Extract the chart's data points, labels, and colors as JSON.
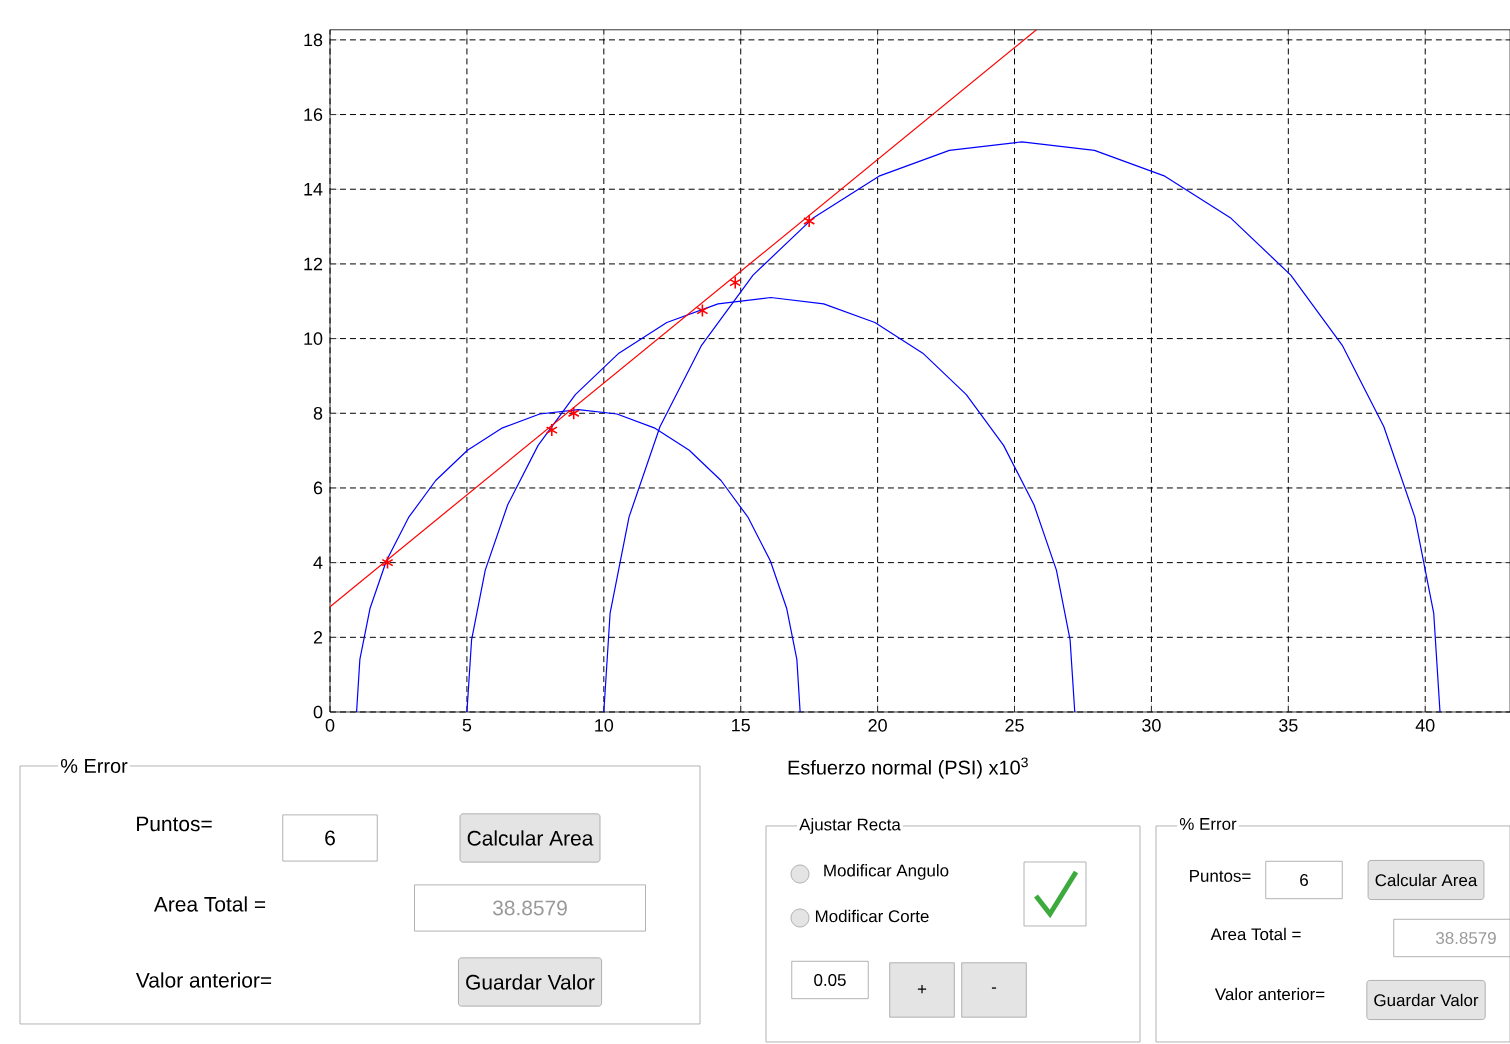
{
  "chart_data": {
    "type": "line",
    "xlabel": "Esfuerzo normal (PSI) x10$^{3}$",
    "xlim": [
      0,
      43.1
    ],
    "ylim": [
      0,
      18.27
    ],
    "xticks": [
      0,
      5,
      10,
      15,
      20,
      25,
      30,
      35,
      40
    ],
    "yticks": [
      0,
      2,
      4,
      6,
      8,
      10,
      12,
      14,
      16,
      18
    ],
    "grid": true,
    "marker": "none",
    "series": [
      {
        "color": "#0000ff",
        "x": [
          0.97,
          1.09,
          1.46,
          2.06,
          2.87,
          3.86,
          5.02,
          6.3,
          7.66,
          9.07,
          10.48,
          11.84,
          13.12,
          14.28,
          15.27,
          16.08,
          16.68,
          17.05,
          17.17
        ],
        "values": [
          0,
          1.41,
          2.77,
          4.05,
          5.21,
          6.2,
          7.01,
          7.61,
          7.98,
          8.1,
          7.98,
          7.61,
          7.01,
          6.2,
          5.21,
          4.05,
          2.77,
          1.41,
          0
        ]
      },
      {
        "color": "#0000ff",
        "x": [
          5.0,
          5.17,
          5.67,
          6.49,
          7.6,
          8.96,
          10.55,
          12.3,
          14.17,
          16.1,
          18.03,
          19.9,
          21.65,
          23.24,
          24.6,
          25.71,
          26.53,
          27.03,
          27.2
        ],
        "values": [
          0,
          1.93,
          3.8,
          5.55,
          7.14,
          8.5,
          9.61,
          10.43,
          10.93,
          11.1,
          10.93,
          10.43,
          9.61,
          8.5,
          7.14,
          5.55,
          3.8,
          1.93,
          0
        ]
      },
      {
        "color": "#0000ff",
        "x": [
          10.0,
          10.23,
          10.92,
          12.05,
          13.57,
          15.45,
          17.63,
          20.05,
          22.62,
          25.27,
          27.92,
          30.49,
          32.91,
          35.09,
          36.97,
          38.49,
          39.62,
          40.31,
          40.54
        ],
        "values": [
          0,
          2.65,
          5.22,
          7.64,
          9.82,
          11.7,
          13.22,
          14.35,
          15.04,
          15.27,
          15.04,
          14.35,
          13.22,
          11.7,
          9.82,
          7.64,
          5.22,
          2.65,
          0
        ]
      },
      {
        "color": "#ff0000",
        "x": [
          0,
          25.8
        ],
        "values": [
          2.82,
          18.27
        ]
      },
      {
        "type": "scatter",
        "marker": "cross",
        "color": "#ff0000",
        "x": [
          2.1,
          8.1,
          8.9,
          13.6,
          14.8,
          17.5
        ],
        "values": [
          4.0,
          7.55,
          8.0,
          10.75,
          11.5,
          13.15
        ]
      }
    ],
    "annotations": [
      "% Error",
      "Puntos=",
      "6",
      "Calcular Area",
      "Area Total =",
      "38.8579",
      "Valor anterior=",
      "Guardar Valor",
      "Ajustar Recta",
      "Modificar Angulo",
      "Modificar Corte",
      "0.05",
      "+",
      "-",
      "% Error",
      "Puntos=",
      "6",
      "Calcular Area",
      "Area Total =",
      "38.8579",
      "Valor anterior=",
      "Guardar Valor"
    ]
  }
}
